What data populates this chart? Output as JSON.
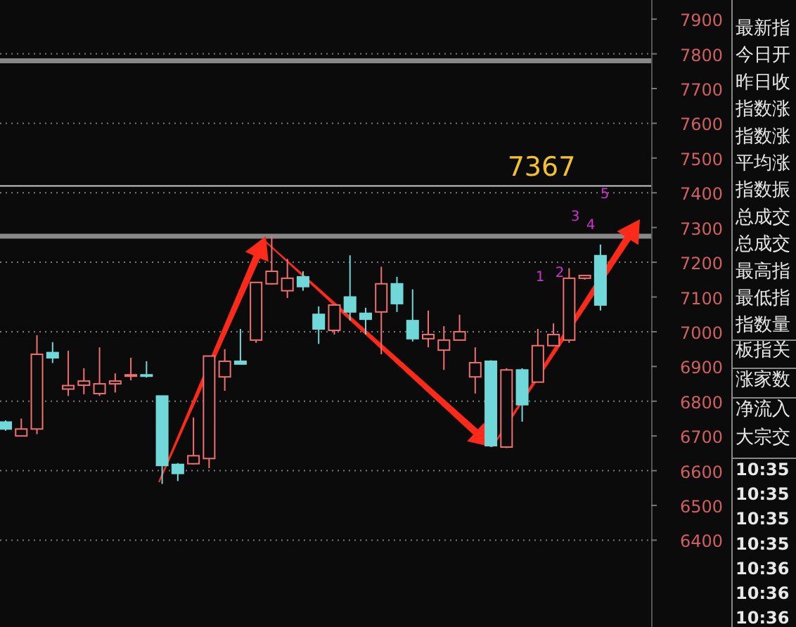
{
  "chart_data": {
    "type": "candlestick",
    "categories": [
      null,
      null,
      null,
      null,
      null,
      null,
      null,
      null,
      null,
      null,
      null,
      null,
      null,
      null,
      null,
      null,
      null,
      null,
      null,
      null,
      null,
      null,
      null,
      null,
      null,
      null,
      null,
      null,
      null,
      null,
      null,
      null,
      null,
      null,
      null,
      null,
      null,
      null,
      null
    ],
    "ohlc": [
      [
        6740,
        6745,
        6715,
        6720
      ],
      [
        6700,
        6750,
        6700,
        6720
      ],
      [
        6720,
        6990,
        6705,
        6935
      ],
      [
        6940,
        6970,
        6910,
        6925
      ],
      [
        6835,
        6945,
        6815,
        6845
      ],
      [
        6846,
        6895,
        6820,
        6858
      ],
      [
        6822,
        6955,
        6815,
        6850
      ],
      [
        6850,
        6880,
        6825,
        6858
      ],
      [
        6872,
        6925,
        6860,
        6876
      ],
      [
        6876,
        6915,
        6868,
        6873
      ],
      [
        6815,
        6815,
        6562,
        6615
      ],
      [
        6618,
        6622,
        6570,
        6592
      ],
      [
        6620,
        6753,
        6618,
        6643
      ],
      [
        6635,
        6930,
        6607,
        6930
      ],
      [
        6870,
        6950,
        6830,
        6915
      ],
      [
        6915,
        7008,
        6905,
        6907
      ],
      [
        6976,
        7142,
        6968,
        7142
      ],
      [
        7138,
        7276,
        7136,
        7174
      ],
      [
        7118,
        7210,
        7097,
        7154
      ],
      [
        7158,
        7174,
        7118,
        7130
      ],
      [
        7050,
        7073,
        6965,
        7008
      ],
      [
        7004,
        7077,
        6992,
        7077
      ],
      [
        7100,
        7220,
        7032,
        7057
      ],
      [
        7053,
        7069,
        6992,
        7036
      ],
      [
        7057,
        7187,
        6935,
        7138
      ],
      [
        7138,
        7158,
        7057,
        7081
      ],
      [
        7032,
        7122,
        6972,
        6980
      ],
      [
        6980,
        7061,
        6955,
        6992
      ],
      [
        6947,
        7016,
        6890,
        6976
      ],
      [
        6976,
        7049,
        6976,
        7000
      ],
      [
        6870,
        6955,
        6822,
        6911
      ],
      [
        6915,
        6918,
        6668,
        6672
      ],
      [
        6668,
        6895,
        6665,
        6890
      ],
      [
        6890,
        6895,
        6741,
        6790
      ],
      [
        6855,
        7008,
        6854,
        6960
      ],
      [
        6960,
        7024,
        6958,
        6992
      ],
      [
        6976,
        7183,
        6968,
        7154
      ],
      [
        7154,
        7162,
        7150,
        7162
      ],
      [
        7219,
        7251,
        7061,
        7077
      ]
    ],
    "colors": [
      "#70d8d8",
      "#f07070",
      "#f07070",
      "#70d8d8",
      "#f07070",
      "#f07070",
      "#f07070",
      "#f07070",
      "#f07070",
      "#70d8d8",
      "#70d8d8",
      "#70d8d8",
      "#f07070",
      "#f07070",
      "#f07070",
      "#70d8d8",
      "#f07070",
      "#f07070",
      "#f07070",
      "#70d8d8",
      "#70d8d8",
      "#f07070",
      "#70d8d8",
      "#70d8d8",
      "#f07070",
      "#70d8d8",
      "#70d8d8",
      "#f07070",
      "#f07070",
      "#f07070",
      "#f07070",
      "#70d8d8",
      "#f07070",
      "#70d8d8",
      "#f07070",
      "#f07070",
      "#f07070",
      "#f07070",
      "#70d8d8"
    ],
    "ylim": [
      6150,
      7955
    ],
    "yticks": [
      6400,
      6500,
      6600,
      6700,
      6800,
      6900,
      7000,
      7100,
      7200,
      7300,
      7400,
      7500,
      7600,
      7700,
      7800,
      7900
    ],
    "grid": "y",
    "tick_labels": "y",
    "ref_lines": [
      {
        "axis": "y",
        "value": 7780,
        "color": "#888888"
      },
      {
        "axis": "y",
        "value": 7275,
        "color": "#888888"
      },
      {
        "axis": "y",
        "value": 7420,
        "color": "#c8c8c8"
      }
    ],
    "annotations": [
      "7367",
      "1",
      "2",
      "3",
      "4",
      "5",
      "最新指",
      "今日开",
      "昨日收",
      "指数涨",
      "指数涨",
      "平均涨",
      "指数振",
      "总成交",
      "总成交",
      "最高指",
      "最低指",
      "指数量",
      "板指关",
      "涨家数",
      "净流入",
      "大宗交",
      "10:35",
      "10:35",
      "10:35",
      "10:35",
      "10:36",
      "10:36",
      "10:36"
    ]
  }
}
